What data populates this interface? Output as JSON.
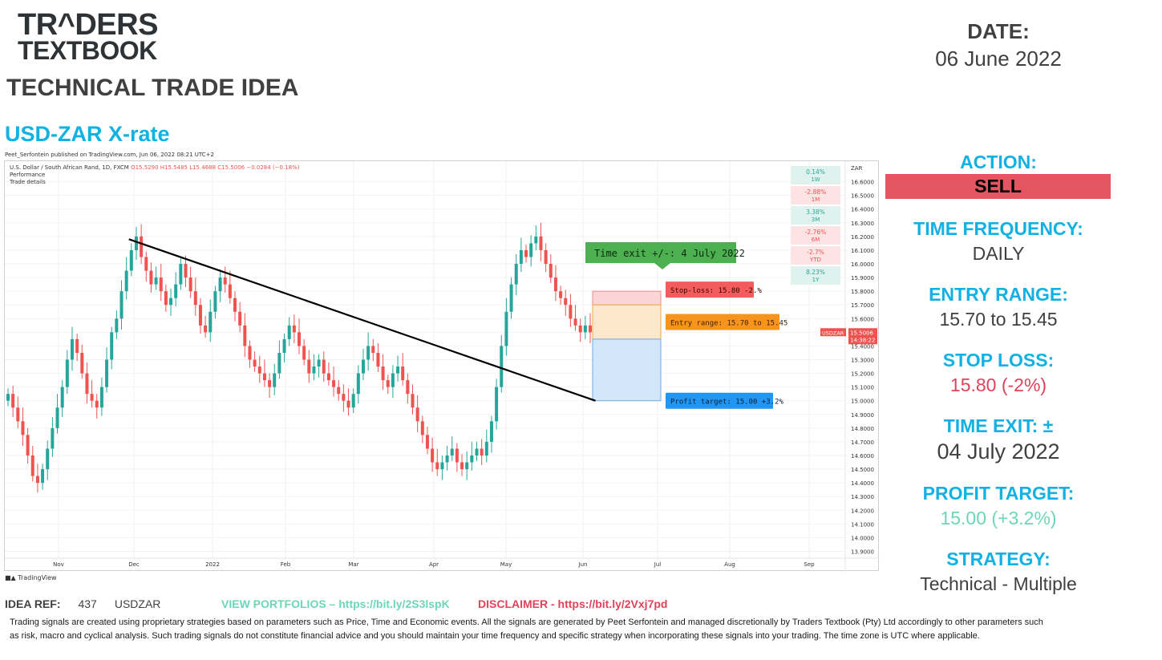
{
  "brand": {
    "line1": "TR^DERS",
    "line2": "TEXTBOOK"
  },
  "page_title": "TECHNICAL TRADE IDEA",
  "date": {
    "label": "DATE:",
    "value": "06 June 2022"
  },
  "pair_title": "USD-ZAR X-rate",
  "publisher": "Peet_Serfontein published on TradingView.com, Jun 06, 2022 08:21 UTC+2",
  "tv_brand": "TradingView",
  "chart_header": {
    "symbol": "U.S. Dollar / South African Rand, 1D, FXCM",
    "o": "O15.5290",
    "h": "H15.5485",
    "l": "L15.4688",
    "c": "C15.5006",
    "chg": "−0.0284 (−0.18%)",
    "line2": "Performance",
    "line3": "Trade details"
  },
  "performance": [
    {
      "value": "0.14%",
      "period": "1W",
      "positive": true
    },
    {
      "value": "-2.88%",
      "period": "1M",
      "positive": false
    },
    {
      "value": "3.38%",
      "period": "3M",
      "positive": true
    },
    {
      "value": "-2.76%",
      "period": "6M",
      "positive": false
    },
    {
      "value": "-2.7%",
      "period": "YTD",
      "positive": false
    },
    {
      "value": "8.23%",
      "period": "1Y",
      "positive": true
    }
  ],
  "colors": {
    "accent": "#11b2e3",
    "sell": "#e45562",
    "up": "#26a69a",
    "down": "#ef5350",
    "profit": "#6dd6b9",
    "stop": "#e0425a"
  },
  "chart_data": {
    "type": "candlestick",
    "y_axis_label": "ZAR",
    "ylim": [
      13.85,
      16.75
    ],
    "y_ticks": [
      "16.6000",
      "16.5000",
      "16.4000",
      "16.3000",
      "16.2000",
      "16.1000",
      "16.0000",
      "15.9000",
      "15.8000",
      "15.7000",
      "15.6000",
      "15.5000",
      "15.4000",
      "15.3000",
      "15.2000",
      "15.1000",
      "15.0000",
      "14.9000",
      "14.8000",
      "14.7000",
      "14.6000",
      "14.5000",
      "14.4000",
      "14.3000",
      "14.2000",
      "14.1000",
      "14.0000",
      "13.9000"
    ],
    "x_ticks": [
      "Nov",
      "Dec",
      "2022",
      "Feb",
      "Mar",
      "Apr",
      "May",
      "Jun",
      "Jul",
      "Aug",
      "Sep"
    ],
    "last_price": {
      "symbol": "USDZAR",
      "price": "15.5006",
      "countdown": "14:38:22"
    },
    "trendline": {
      "from": {
        "date": "2021-11-29",
        "price": 16.18
      },
      "to": {
        "date": "2022-06-06",
        "price": 15.0
      }
    },
    "trade": {
      "stop_loss": 15.8,
      "entry_top": 15.7,
      "entry_bottom": 15.45,
      "profit_target": 15.0
    },
    "annotations": {
      "time_exit": "Time exit +/-: 4 July 2022",
      "stop_loss": "Stop-loss: 15.80 -2.%",
      "entry_range": "Entry range: 15.70 to 15.45",
      "profit_target": "Profit target: 15.00 +3.2%"
    },
    "closes_approx": [
      15.05,
      14.95,
      14.85,
      14.75,
      14.6,
      14.45,
      14.4,
      14.5,
      14.65,
      14.8,
      14.95,
      15.1,
      15.3,
      15.45,
      15.35,
      15.2,
      15.05,
      15.0,
      14.95,
      15.1,
      15.3,
      15.5,
      15.6,
      15.8,
      15.95,
      16.1,
      16.2,
      16.05,
      15.95,
      15.85,
      15.9,
      15.8,
      15.7,
      15.75,
      15.85,
      16.0,
      15.9,
      15.8,
      15.7,
      15.55,
      15.5,
      15.65,
      15.8,
      15.9,
      15.85,
      15.75,
      15.65,
      15.55,
      15.4,
      15.3,
      15.25,
      15.2,
      15.15,
      15.1,
      15.2,
      15.35,
      15.45,
      15.55,
      15.5,
      15.4,
      15.3,
      15.2,
      15.25,
      15.3,
      15.2,
      15.15,
      15.1,
      15.05,
      15.0,
      14.95,
      15.05,
      15.2,
      15.3,
      15.4,
      15.35,
      15.25,
      15.15,
      15.1,
      15.2,
      15.25,
      15.15,
      15.05,
      14.95,
      14.85,
      14.75,
      14.65,
      14.55,
      14.5,
      14.55,
      14.6,
      14.65,
      14.55,
      14.5,
      14.55,
      14.6,
      14.65,
      14.6,
      14.7,
      14.85,
      15.1,
      15.4,
      15.65,
      15.85,
      16.0,
      16.1,
      16.05,
      16.15,
      16.2,
      16.1,
      16.0,
      15.9,
      15.8,
      15.75,
      15.7,
      15.6,
      15.55,
      15.5,
      15.55,
      15.5
    ]
  },
  "sidebar": {
    "action_label": "ACTION:",
    "action_value": "SELL",
    "freq_label": "TIME FREQUENCY:",
    "freq_value": "DAILY",
    "entry_label": "ENTRY RANGE:",
    "entry_value": "15.70 to 15.45",
    "stop_label": "STOP LOSS:",
    "stop_value": "15.80 (-2%)",
    "exit_label": "TIME EXIT: ±",
    "exit_value": "04 July 2022",
    "profit_label": "PROFIT TARGET:",
    "profit_value": "15.00 (+3.2%)",
    "strategy_label": "STRATEGY:",
    "strategy_value": "Technical - Multiple"
  },
  "footer": {
    "idea_ref_label": "IDEA REF:",
    "idea_ref_number": "437",
    "idea_ref_symbol": "USDZAR",
    "portfolios": "VIEW PORTFOLIOS – https://bit.ly/2S3lspK",
    "disclaimer": "DISCLAIMER -  https://bit.ly/2Vxj7pd",
    "disclaimer_body": "Trading signals are created using proprietary strategies based on parameters such as Price, Time and Economic events. All the signals are generated by Peet Serfontein and managed discretionally by Traders Textbook (Pty) Ltd accordingly to other parameters such as risk, macro and cyclical analysis. Such trading signals do not constitute financial advice and you should maintain your time frequency and specific strategy when incorporating these signals into your trading. The time zone is UTC where applicable."
  }
}
